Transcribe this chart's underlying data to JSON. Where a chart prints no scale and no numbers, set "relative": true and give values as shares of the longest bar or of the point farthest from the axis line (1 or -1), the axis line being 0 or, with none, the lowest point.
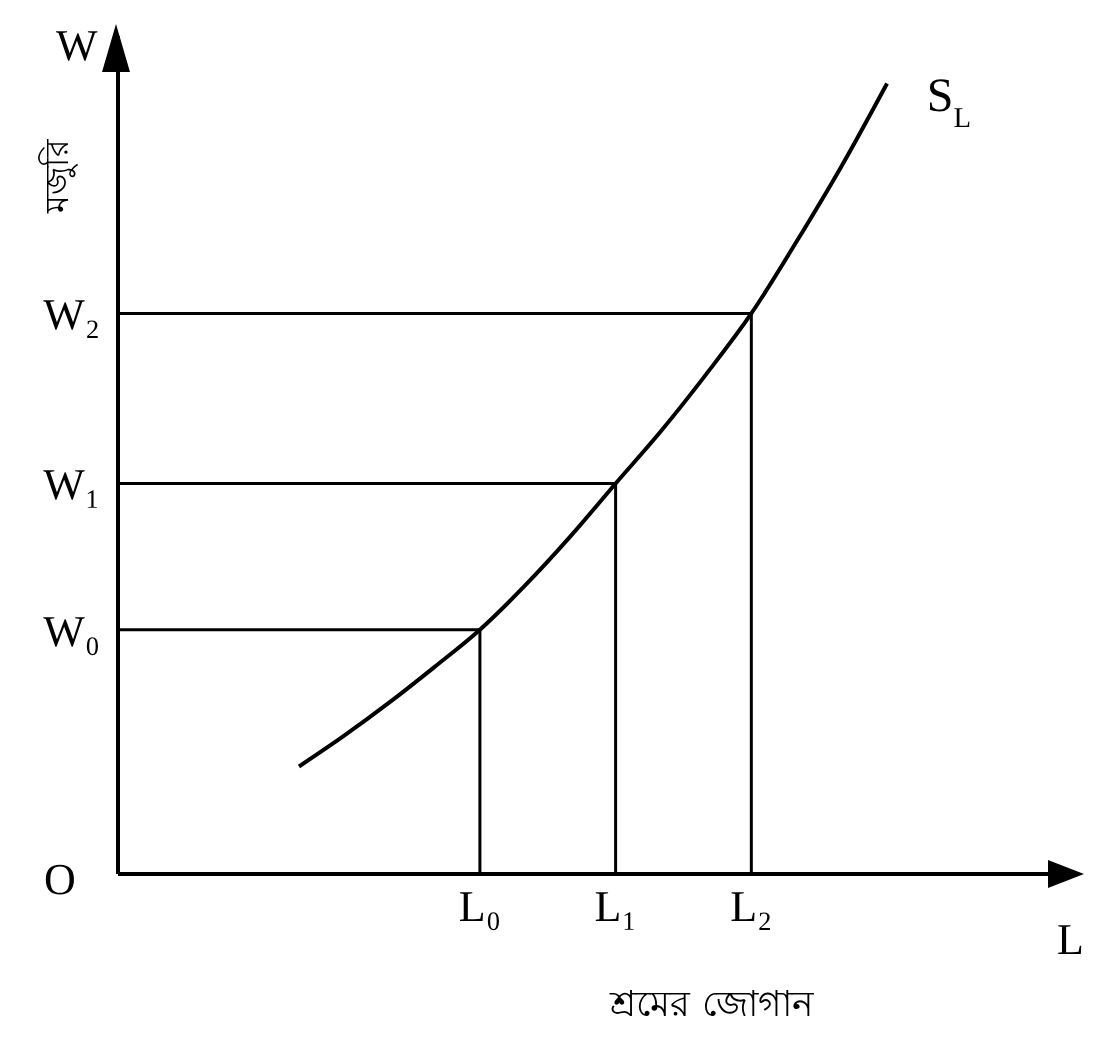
{
  "chart_data": {
    "type": "line",
    "relative": true,
    "xlabel": "শ্রমের জোগান",
    "ylabel": "মজুরি",
    "annotations": [
      "W",
      "O",
      "L"
    ],
    "categories": [
      null,
      null,
      null,
      null,
      null,
      null,
      null,
      null,
      "L₀",
      null,
      null,
      "L₁",
      null,
      null,
      "L₂",
      null,
      null,
      null,
      null,
      null,
      null,
      null
    ],
    "series": [
      {
        "name": "S$_{L}$",
        "color": "#000000",
        "values": [
          null,
          null,
          null,
          null,
          0.136,
          0.175,
          0.217,
          0.262,
          0.309,
          0.365,
          0.427,
          0.494,
          0.56,
          0.632,
          0.709,
          0.8,
          0.896,
          1.0,
          null,
          null,
          null,
          null
        ]
      }
    ],
    "ref_lines": [
      {
        "axis": "y",
        "value": 0.309,
        "label": "W₀",
        "color": "#000000"
      },
      {
        "axis": "y",
        "value": 0.494,
        "label": "W₁",
        "color": "#000000"
      },
      {
        "axis": "y",
        "value": 0.709,
        "label": "W₂",
        "color": "#000000"
      },
      {
        "axis": "x",
        "value": "L₀",
        "color": "#000000"
      },
      {
        "axis": "x",
        "value": "L₁",
        "color": "#000000"
      },
      {
        "axis": "x",
        "value": "L₂",
        "color": "#000000"
      }
    ],
    "marker": "none",
    "line_style": "solid",
    "grid": false,
    "legend": false
  }
}
